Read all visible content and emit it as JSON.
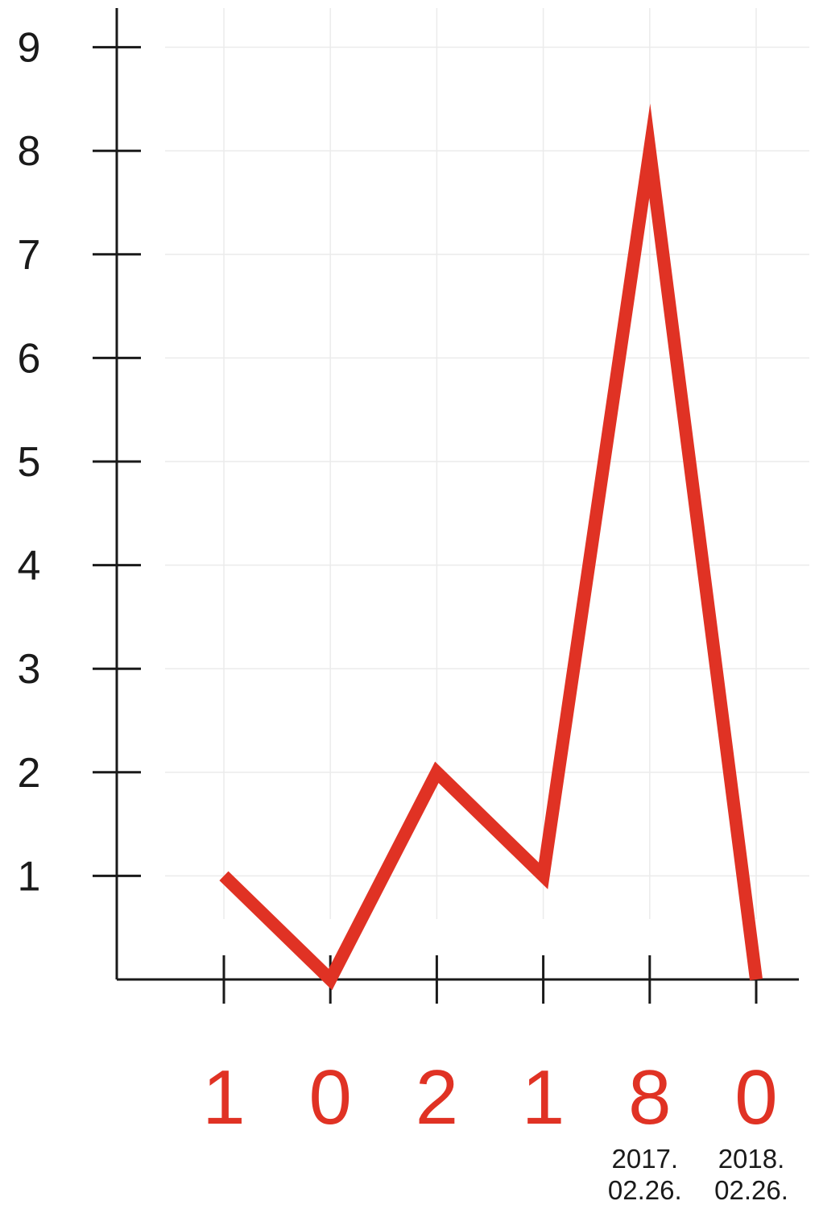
{
  "chart_data": {
    "type": "line",
    "x": [
      1,
      2,
      3,
      4,
      5,
      6
    ],
    "values": [
      1,
      0,
      2,
      1,
      8,
      0
    ],
    "value_labels": [
      "1",
      "0",
      "2",
      "1",
      "8",
      "0"
    ],
    "x_tick_labels": [
      {
        "line1": "",
        "line2": ""
      },
      {
        "line1": "",
        "line2": ""
      },
      {
        "line1": "",
        "line2": ""
      },
      {
        "line1": "",
        "line2": ""
      },
      {
        "line1": "2017.",
        "line2": "02.26."
      },
      {
        "line1": "2018.",
        "line2": "02.26."
      }
    ],
    "y_ticks": [
      "1",
      "2",
      "3",
      "4",
      "5",
      "6",
      "7",
      "8",
      "9"
    ],
    "ylim": [
      0,
      9
    ],
    "grid": true,
    "title": "",
    "xlabel": "",
    "ylabel": "",
    "line_color": "#e03224",
    "axis_color": "#1a1a1a",
    "grid_color": "#ebebeb"
  }
}
